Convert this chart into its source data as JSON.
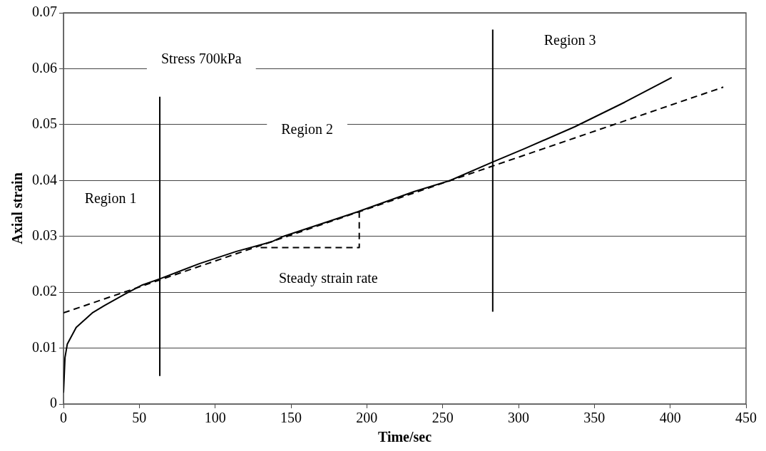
{
  "chart_data": {
    "type": "line",
    "xlabel": "Time/sec",
    "ylabel": "Axial strain",
    "xlim": [
      0,
      450
    ],
    "xticks": [
      0,
      50,
      100,
      150,
      200,
      250,
      300,
      350,
      400,
      450
    ],
    "ylim": [
      0,
      0.07
    ],
    "yticks": [
      0,
      0.01,
      0.02,
      0.03,
      0.04,
      0.05,
      0.06,
      0.07
    ],
    "grid": "y",
    "legend": false,
    "marker": "none",
    "series": [
      {
        "color": "#000000",
        "line_style": "solid",
        "x": [
          0,
          1,
          2.5,
          8.4,
          19,
          27,
          40,
          52,
          63.5,
          89.5,
          114,
          137,
          145,
          194,
          231,
          255,
          283,
          304,
          337,
          370,
          401
        ],
        "values": [
          0.002,
          0.0083,
          0.0107,
          0.0137,
          0.0163,
          0.0176,
          0.0196,
          0.0213,
          0.0224,
          0.0251,
          0.0273,
          0.029,
          0.03,
          0.0344,
          0.038,
          0.04,
          0.0433,
          0.0457,
          0.0496,
          0.054,
          0.0584
        ]
      },
      {
        "color": "#000000",
        "line_style": "dashed",
        "x": [
          0,
          435
        ],
        "values": [
          0.0163,
          0.0567
        ]
      },
      {
        "color": "#000000",
        "line_style": "dashed",
        "x": [
          130,
          195,
          195
        ],
        "values": [
          0.028,
          0.028,
          0.0345
        ]
      },
      {
        "color": "#000000",
        "line_style": "solid",
        "x": [
          63.5,
          63.5
        ],
        "values": [
          0.005,
          0.055
        ]
      },
      {
        "color": "#000000",
        "line_style": "solid",
        "x": [
          283,
          283
        ],
        "values": [
          0.0165,
          0.067
        ]
      }
    ],
    "annotations": [
      "Stress 700kPa",
      "Region 2",
      "Region 1",
      "Steady strain rate",
      "Region 3"
    ]
  }
}
